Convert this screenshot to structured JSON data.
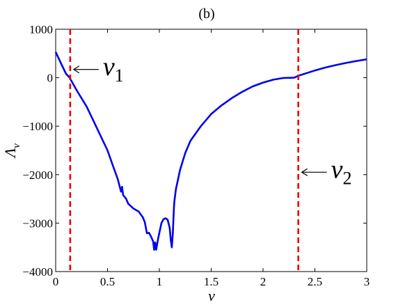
{
  "chart_data": {
    "type": "line",
    "title": "(b)",
    "xlabel": "ν",
    "ylabel_main": "Λ",
    "ylabel_sub": "ν",
    "xlim": [
      0,
      3
    ],
    "ylim": [
      -4000,
      1000
    ],
    "xticks": [
      0,
      0.5,
      1,
      1.5,
      2,
      2.5,
      3
    ],
    "xtick_labels": [
      "0",
      "0.5",
      "1",
      "1.5",
      "2",
      "2.5",
      "3"
    ],
    "yticks": [
      -4000,
      -3000,
      -2000,
      -1000,
      0,
      1000
    ],
    "ytick_labels": [
      "−4000",
      "−3000",
      "−2000",
      "−1000",
      "0",
      "1000"
    ],
    "grid": false,
    "series": [
      {
        "color": "#0000ee",
        "x": [
          0,
          0.05,
          0.1,
          0.135,
          0.2,
          0.3,
          0.4,
          0.5,
          0.55,
          0.6,
          0.63,
          0.64,
          0.65,
          0.68,
          0.7,
          0.72,
          0.75,
          0.8,
          0.84,
          0.86,
          0.88,
          0.9,
          0.92,
          0.94,
          0.95,
          0.96,
          0.97,
          0.98,
          0.99,
          1.0,
          1.02,
          1.04,
          1.06,
          1.08,
          1.1,
          1.11,
          1.12,
          1.13,
          1.14,
          1.145,
          1.16,
          1.2,
          1.25,
          1.3,
          1.4,
          1.5,
          1.6,
          1.7,
          1.8,
          1.9,
          2.0,
          2.1,
          2.2,
          2.3,
          2.34,
          2.4,
          2.5,
          2.6,
          2.7,
          2.8,
          2.9,
          3.0
        ],
        "y": [
          530,
          300,
          80,
          0,
          -250,
          -600,
          -1050,
          -1500,
          -1800,
          -2100,
          -2350,
          -2250,
          -2420,
          -2500,
          -2600,
          -2640,
          -2700,
          -2760,
          -2880,
          -2980,
          -3210,
          -3200,
          -3280,
          -3380,
          -3550,
          -3400,
          -3550,
          -3420,
          -3300,
          -3200,
          -3000,
          -2920,
          -2900,
          -2930,
          -3100,
          -3350,
          -3500,
          -3200,
          -2700,
          -2550,
          -2300,
          -1900,
          -1550,
          -1300,
          -1000,
          -750,
          -570,
          -420,
          -290,
          -180,
          -100,
          -40,
          -5,
          0,
          40,
          80,
          150,
          210,
          260,
          305,
          345,
          380
        ]
      }
    ],
    "vlines": [
      {
        "x": 0.14,
        "color": "#ee0000",
        "style": "dashed"
      },
      {
        "x": 2.34,
        "color": "#ee0000",
        "style": "dashed"
      }
    ],
    "annotations": [
      {
        "text_main": "ν",
        "text_sub": "1",
        "arrow_x": 0.16,
        "arrow_y": 170,
        "placement": "right-of-line"
      },
      {
        "text_main": "ν",
        "text_sub": "2",
        "arrow_x": 2.36,
        "arrow_y": -1950,
        "placement": "right-of-line"
      }
    ]
  }
}
